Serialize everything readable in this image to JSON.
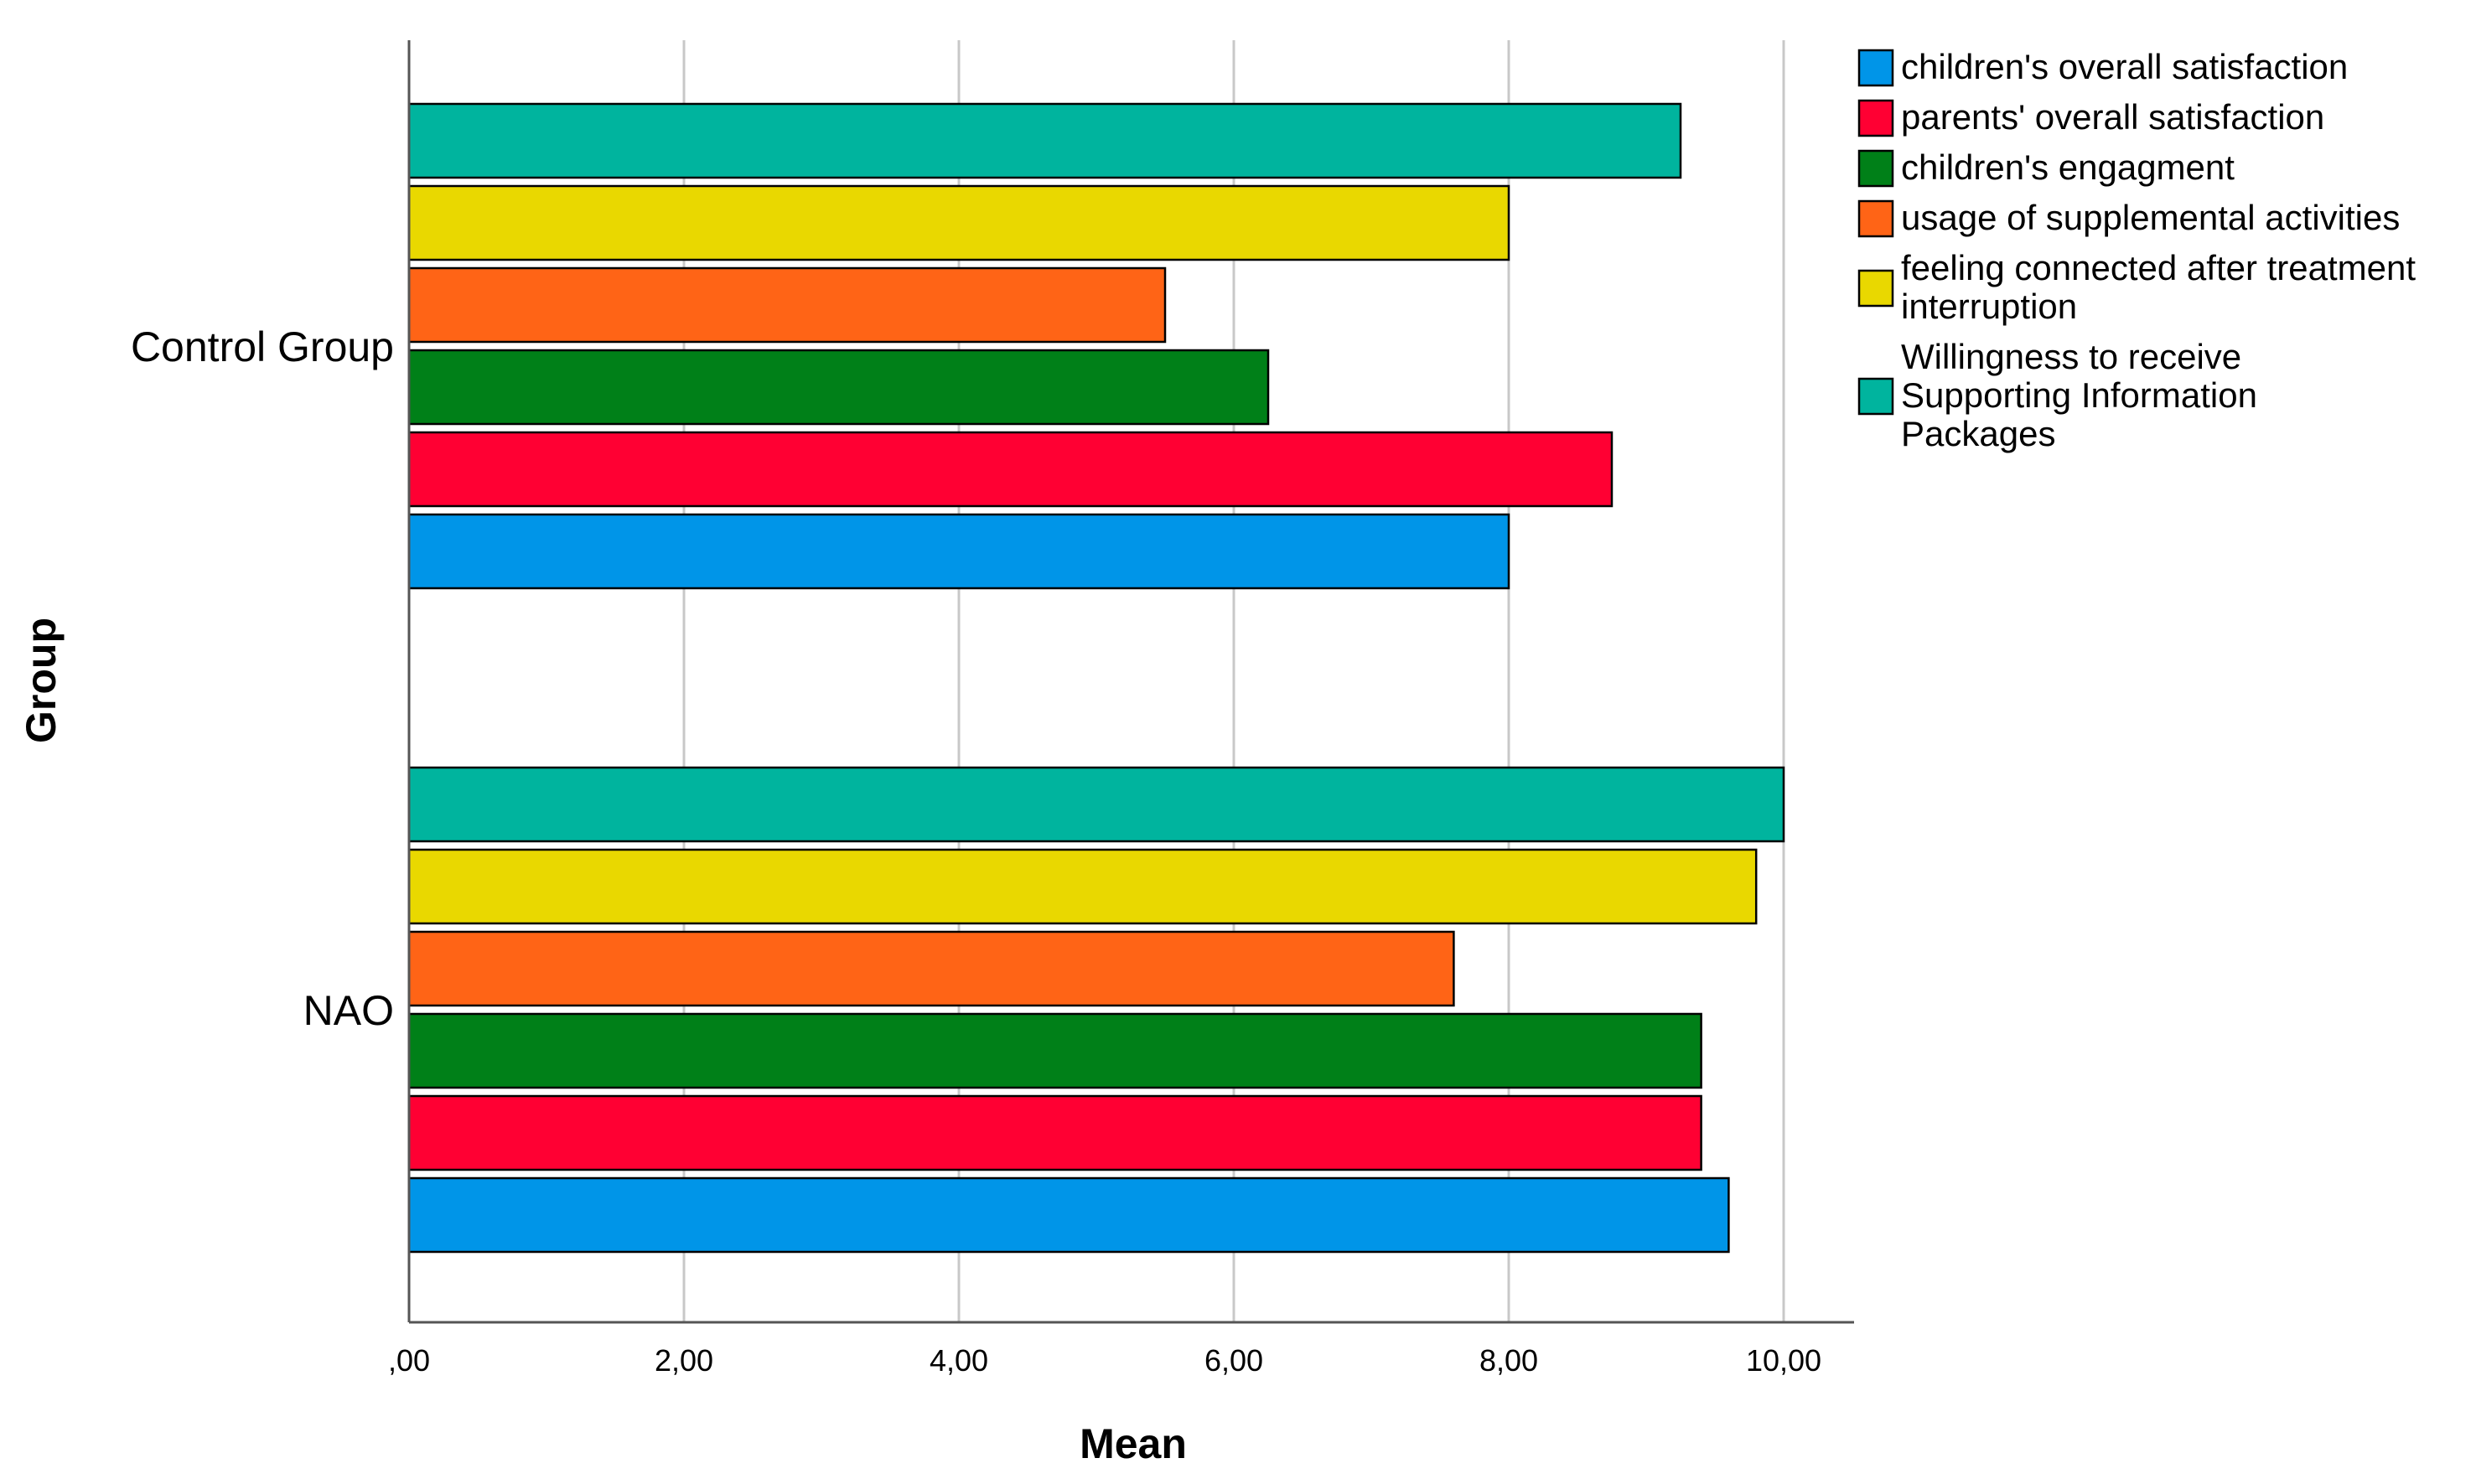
{
  "chart_data": {
    "type": "bar",
    "orientation": "horizontal",
    "xlabel": "Mean",
    "ylabel": "Group",
    "xlim": [
      0,
      10.5
    ],
    "xticks": [
      0,
      2,
      4,
      6,
      8,
      10
    ],
    "xtick_labels": [
      ",00",
      "2,00",
      "4,00",
      "6,00",
      "8,00",
      "10,00"
    ],
    "grid": "vertical",
    "legend_position": "top-right, outside plot",
    "categories": [
      "Control Group",
      "NAO"
    ],
    "series": [
      {
        "name": "children's overall satisfaction",
        "color": "#0095E8",
        "values": [
          8.0,
          9.6
        ]
      },
      {
        "name": "parents'  overall satisfaction",
        "color": "#FF0033",
        "values": [
          8.75,
          9.4
        ]
      },
      {
        "name": "children's engagment",
        "color": "#008018",
        "values": [
          6.25,
          9.4
        ]
      },
      {
        "name": "usage of supplemental activities",
        "color": "#FF6416",
        "values": [
          5.5,
          7.6
        ]
      },
      {
        "name": "feeling connected after treatment interruption",
        "legend_lines": [
          "feeling connected after treatment",
          "interruption"
        ],
        "color": "#E9D800",
        "values": [
          8.0,
          9.8
        ]
      },
      {
        "name": "Willingness to receive Supporting Information Packages",
        "legend_lines": [
          "Willingness to receive",
          "Supporting Information",
          "Packages"
        ],
        "color": "#00B49E",
        "values": [
          9.25,
          10.0
        ]
      }
    ]
  }
}
